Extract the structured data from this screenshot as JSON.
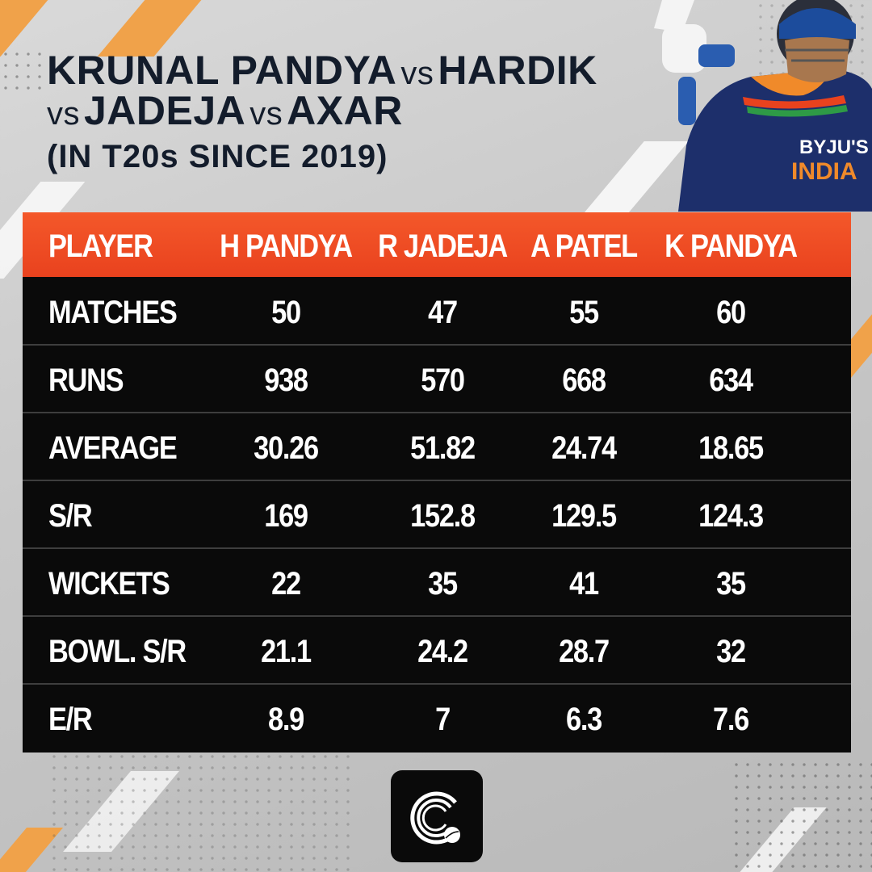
{
  "title": {
    "line1_name1": "KRUNAL PANDYA",
    "line1_vs": "vs",
    "line1_name2": "HARDIK",
    "line2_vs1": "vs",
    "line2_name1": "JADEJA",
    "line2_vs2": "vs",
    "line2_name2": "AXAR",
    "subtitle": "(IN T20s SINCE 2019)"
  },
  "table": {
    "header_label": "PLAYER",
    "players": [
      "H PANDYA",
      "R JADEJA",
      "A PATEL",
      "K PANDYA"
    ],
    "rows": [
      {
        "label": "MATCHES",
        "values": [
          "50",
          "47",
          "55",
          "60"
        ]
      },
      {
        "label": "RUNS",
        "values": [
          "938",
          "570",
          "668",
          "634"
        ]
      },
      {
        "label": "AVERAGE",
        "values": [
          "30.26",
          "51.82",
          "24.74",
          "18.65"
        ]
      },
      {
        "label": "S/R",
        "values": [
          "169",
          "152.8",
          "129.5",
          "124.3"
        ]
      },
      {
        "label": "WICKETS",
        "values": [
          "22",
          "35",
          "41",
          "35"
        ]
      },
      {
        "label": "BOWL. S/R",
        "values": [
          "21.1",
          "24.2",
          "28.7",
          "32"
        ]
      },
      {
        "label": "E/R",
        "values": [
          "8.9",
          "7",
          "6.3",
          "7.6"
        ]
      }
    ]
  },
  "jersey": {
    "sponsor": "BYJU'S",
    "team": "INDIA"
  },
  "colors": {
    "accent": "#ef4b23",
    "dark": "#0a0a0a",
    "title": "#131c2b",
    "jersey": "#1d2f6b"
  },
  "icons": [
    "player-photo",
    "brand-logo-icon"
  ]
}
